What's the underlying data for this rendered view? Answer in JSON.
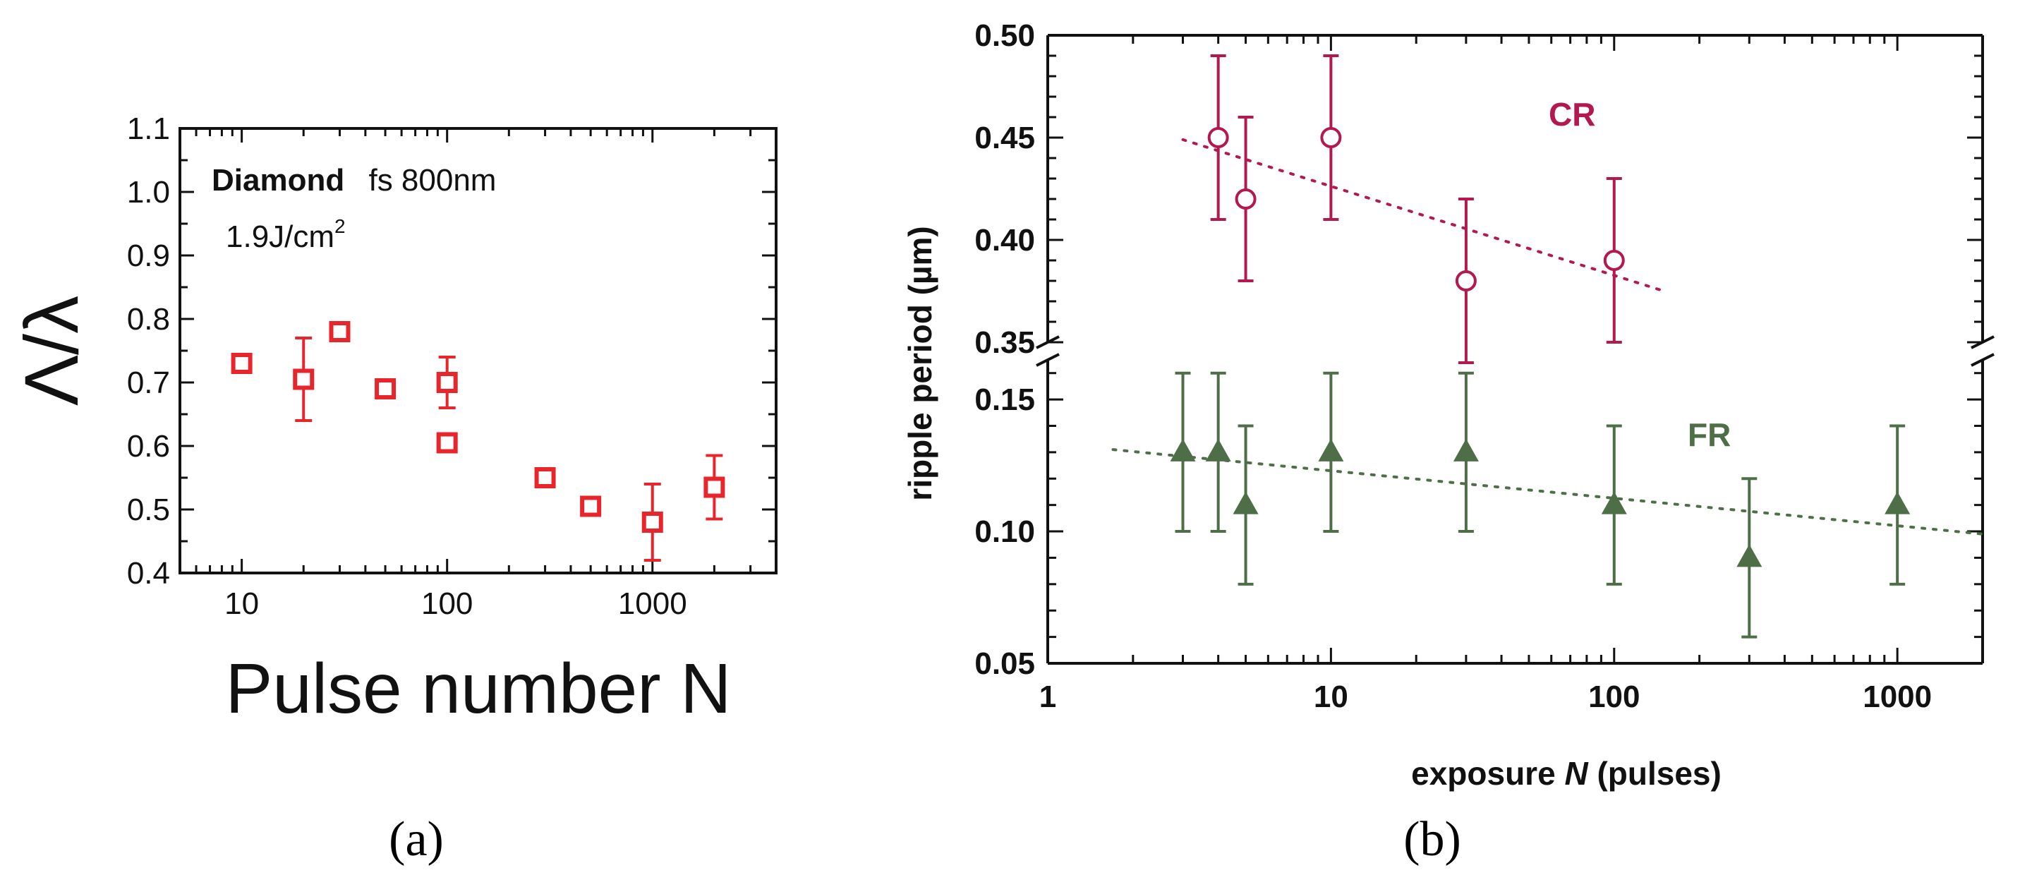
{
  "chart_data": [
    {
      "type": "scatter",
      "panel_label": "(a)",
      "title": "",
      "annotation_bold": "Diamond",
      "annotation_rest": "fs 800nm",
      "annotation_fluence_base": "1.9J/cm",
      "annotation_fluence_sup": "2",
      "xlabel": "Pulse number N",
      "ylabel": "Λ/λ",
      "xscale": "log",
      "xlim": [
        5,
        4000
      ],
      "ylim": [
        0.4,
        1.1
      ],
      "xticks": [
        10,
        100,
        1000
      ],
      "xtick_labels": [
        "10",
        "100",
        "1000"
      ],
      "yticks": [
        0.4,
        0.5,
        0.6,
        0.7,
        0.8,
        0.9,
        1.0,
        1.1
      ],
      "ytick_labels": [
        "0.4",
        "0.5",
        "0.6",
        "0.7",
        "0.8",
        "0.9",
        "1.0",
        "1.1"
      ],
      "color": "#e8252b",
      "marker": "open-square",
      "points": [
        {
          "x": 10,
          "y": 0.73,
          "err": null
        },
        {
          "x": 20,
          "y": 0.705,
          "err": 0.065
        },
        {
          "x": 30,
          "y": 0.78,
          "err": null
        },
        {
          "x": 50,
          "y": 0.69,
          "err": null
        },
        {
          "x": 100,
          "y": 0.7,
          "err": 0.04
        },
        {
          "x": 100,
          "y": 0.605,
          "err": null
        },
        {
          "x": 300,
          "y": 0.55,
          "err": null
        },
        {
          "x": 500,
          "y": 0.505,
          "err": null
        },
        {
          "x": 1000,
          "y": 0.48,
          "err": 0.06
        },
        {
          "x": 2000,
          "y": 0.535,
          "err": 0.05
        }
      ]
    },
    {
      "type": "scatter",
      "panel_label": "(b)",
      "title": "",
      "xlabel_pre": "exposure ",
      "xlabel_italic": "N",
      "xlabel_post": " (pulses)",
      "ylabel": "ripple period (µm)",
      "xscale": "log",
      "xlim": [
        1,
        2000
      ],
      "broken_axis": true,
      "xticks": [
        1,
        10,
        100,
        1000
      ],
      "xtick_labels": [
        "1",
        "10",
        "100",
        "1000"
      ],
      "upper": {
        "ylim": [
          0.35,
          0.5
        ],
        "yticks": [
          0.35,
          0.4,
          0.45,
          0.5
        ],
        "ytick_labels": [
          "0.35",
          "0.40",
          "0.45",
          "0.50"
        ]
      },
      "lower": {
        "ylim": [
          0.05,
          0.165
        ],
        "yticks": [
          0.05,
          0.1,
          0.15
        ],
        "ytick_labels": [
          "0.05",
          "0.10",
          "0.15"
        ]
      },
      "series": [
        {
          "name": "CR",
          "color": "#b3184f",
          "marker": "open-circle",
          "axis": "upper",
          "points": [
            {
              "x": 4,
              "y": 0.45,
              "err": 0.04
            },
            {
              "x": 5,
              "y": 0.42,
              "err": 0.04
            },
            {
              "x": 10,
              "y": 0.45,
              "err": 0.04
            },
            {
              "x": 30,
              "y": 0.38,
              "err": 0.04
            },
            {
              "x": 100,
              "y": 0.39,
              "err": 0.04
            }
          ],
          "trend": {
            "x": [
              3,
              150
            ],
            "y": [
              0.449,
              0.375
            ]
          }
        },
        {
          "name": "FR",
          "color": "#4e6e48",
          "marker": "filled-triangle",
          "axis": "lower",
          "points": [
            {
              "x": 3,
              "y": 0.13,
              "err": 0.03
            },
            {
              "x": 4,
              "y": 0.13,
              "err": 0.03
            },
            {
              "x": 5,
              "y": 0.11,
              "err": 0.03
            },
            {
              "x": 10,
              "y": 0.13,
              "err": 0.03
            },
            {
              "x": 30,
              "y": 0.13,
              "err": 0.03
            },
            {
              "x": 100,
              "y": 0.11,
              "err": 0.03
            },
            {
              "x": 300,
              "y": 0.09,
              "err": 0.03
            },
            {
              "x": 1000,
              "y": 0.11,
              "err": 0.03
            }
          ],
          "trend": {
            "x": [
              1.7,
              2000
            ],
            "y": [
              0.131,
              0.099
            ]
          }
        }
      ]
    }
  ]
}
